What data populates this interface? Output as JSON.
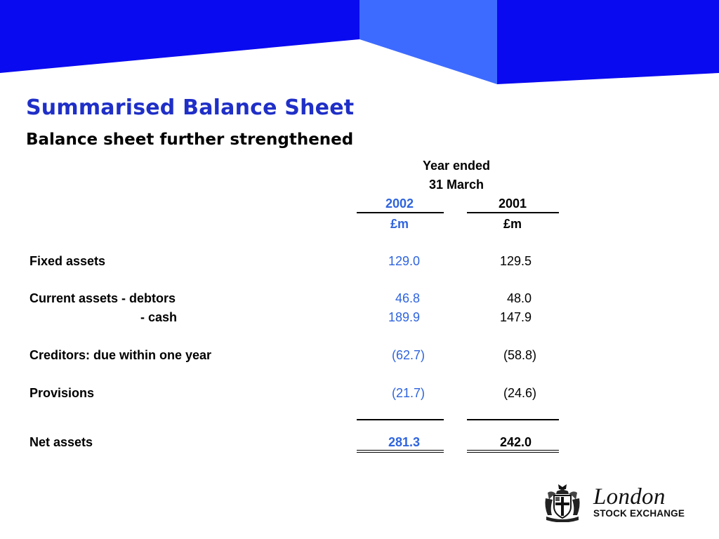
{
  "slide": {
    "title": "Summarised Balance Sheet",
    "subtitle": "Balance sheet further strengthened"
  },
  "table": {
    "header_line1": "Year ended",
    "header_line2": "31 March",
    "columns": [
      {
        "year": "2002",
        "unit": "£m"
      },
      {
        "year": "2001",
        "unit": "£m"
      }
    ],
    "rows": [
      {
        "label": "Fixed assets",
        "values": [
          "129.0",
          "129.5"
        ]
      },
      {
        "label": "Current assets - debtors",
        "values": [
          "46.8",
          "48.0"
        ]
      },
      {
        "label": "- cash",
        "values": [
          "189.9",
          "147.9"
        ]
      },
      {
        "label": "Creditors: due within one year",
        "values": [
          "(62.7)",
          "(58.8)"
        ]
      },
      {
        "label": "Provisions",
        "values": [
          "(21.7)",
          "(24.6)"
        ]
      },
      {
        "label": "Net assets",
        "values": [
          "281.3",
          "242.0"
        ]
      }
    ]
  },
  "logo": {
    "name": "London",
    "tagline": "STOCK EXCHANGE"
  },
  "colors": {
    "banner_dark": "#0a0af0",
    "banner_light": "#3d6bff",
    "title": "#1f2fc7",
    "current_year": "#2f64de"
  }
}
